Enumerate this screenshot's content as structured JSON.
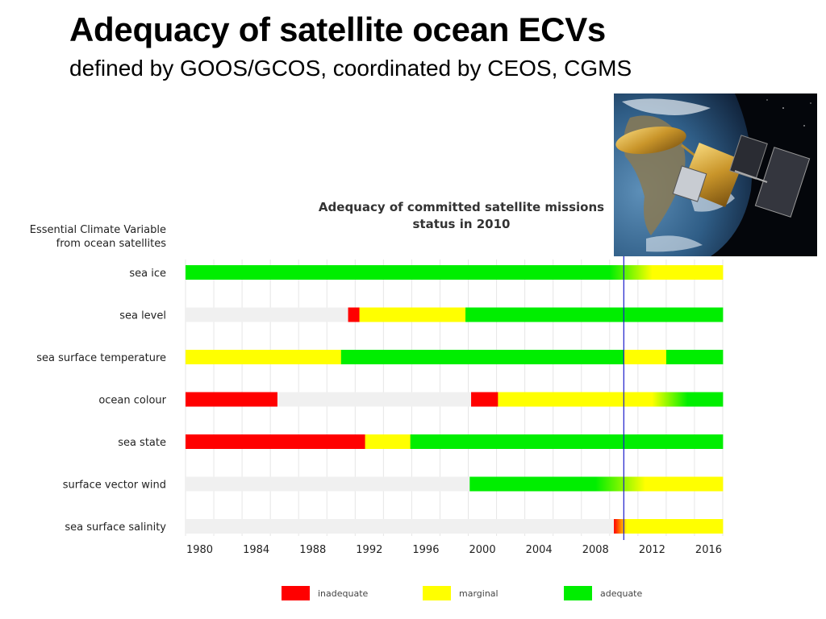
{
  "slide": {
    "title": "Adequacy of satellite ocean ECVs",
    "subtitle": "defined by GOOS/GCOS, coordinated by CEOS, CGMS"
  },
  "image": {
    "description_name": "satellite-photo"
  },
  "colors": {
    "inadequate": "#ff0000",
    "marginal": "#ffff00",
    "adequate": "#00ee00",
    "none": "#f0f0f0",
    "current_year_line": "#1a1acc"
  },
  "chart_data": {
    "type": "bar",
    "title": "Adequacy of committed satellite missions status in 2010",
    "title_lines": [
      "Adequacy of committed satellite missions",
      "status in 2010"
    ],
    "row_header_lines": [
      "Essential Climate Variable",
      "from ocean satellites"
    ],
    "x_ticks": [
      1980,
      1984,
      1988,
      1992,
      1996,
      2000,
      2004,
      2008,
      2012,
      2016
    ],
    "xlim": [
      1979,
      2017
    ],
    "current_year": 2010.0,
    "grid": true,
    "legend_position": "bottom",
    "legend": [
      {
        "key": "inadequate",
        "label": "inadequate"
      },
      {
        "key": "marginal",
        "label": "marginal"
      },
      {
        "key": "adequate",
        "label": "adequate"
      }
    ],
    "rows": [
      {
        "label": "sea ice",
        "segments": [
          {
            "start": 1979,
            "end": 2009,
            "status": "adequate"
          },
          {
            "start": 2009,
            "end": 2012,
            "status": "adequate",
            "fade_to": "marginal"
          },
          {
            "start": 2012,
            "end": 2017,
            "status": "marginal"
          }
        ]
      },
      {
        "label": "sea level",
        "segments": [
          {
            "start": 1979,
            "end": 1990.5,
            "status": "none"
          },
          {
            "start": 1990.5,
            "end": 1991.3,
            "status": "inadequate"
          },
          {
            "start": 1991.3,
            "end": 1998.8,
            "status": "marginal"
          },
          {
            "start": 1998.8,
            "end": 2017,
            "status": "adequate"
          }
        ]
      },
      {
        "label": "sea surface temperature",
        "segments": [
          {
            "start": 1979,
            "end": 1990,
            "status": "marginal"
          },
          {
            "start": 1990,
            "end": 2010,
            "status": "adequate"
          },
          {
            "start": 2010,
            "end": 2013,
            "status": "marginal"
          },
          {
            "start": 2013,
            "end": 2017,
            "status": "adequate"
          }
        ]
      },
      {
        "label": "ocean colour",
        "segments": [
          {
            "start": 1979,
            "end": 1985.5,
            "status": "inadequate"
          },
          {
            "start": 1985.5,
            "end": 1999.2,
            "status": "none"
          },
          {
            "start": 1999.2,
            "end": 2001.1,
            "status": "inadequate"
          },
          {
            "start": 2001.1,
            "end": 2012,
            "status": "marginal"
          },
          {
            "start": 2012,
            "end": 2014.5,
            "status": "marginal",
            "fade_to": "adequate"
          },
          {
            "start": 2014.5,
            "end": 2017,
            "status": "adequate"
          }
        ]
      },
      {
        "label": "sea state",
        "segments": [
          {
            "start": 1979,
            "end": 1991.7,
            "status": "inadequate"
          },
          {
            "start": 1991.7,
            "end": 1994.9,
            "status": "marginal"
          },
          {
            "start": 1994.9,
            "end": 2017,
            "status": "adequate"
          }
        ]
      },
      {
        "label": "surface vector wind",
        "segments": [
          {
            "start": 1979,
            "end": 1999.1,
            "status": "none"
          },
          {
            "start": 1999.1,
            "end": 2008,
            "status": "adequate"
          },
          {
            "start": 2008,
            "end": 2011.5,
            "status": "adequate",
            "fade_to": "marginal"
          },
          {
            "start": 2011.5,
            "end": 2017,
            "status": "marginal"
          }
        ]
      },
      {
        "label": "sea surface salinity",
        "segments": [
          {
            "start": 1979,
            "end": 2009.3,
            "status": "none"
          },
          {
            "start": 2009.3,
            "end": 2010.2,
            "status": "inadequate",
            "fade_to": "marginal"
          },
          {
            "start": 2010.2,
            "end": 2017,
            "status": "marginal"
          }
        ]
      }
    ]
  }
}
